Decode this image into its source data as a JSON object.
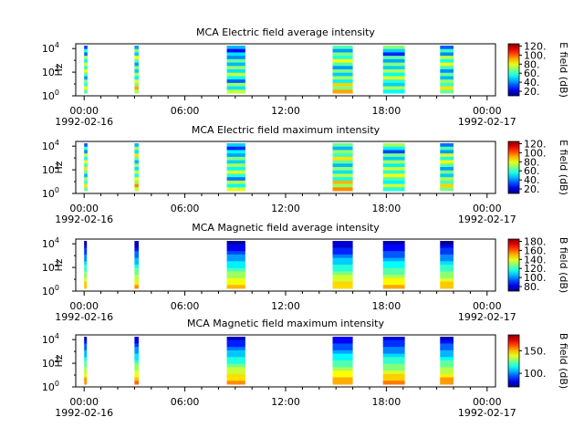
{
  "chart_data": [
    {
      "type": "heatmap",
      "title": "MCA  Electric field average intensity",
      "ylabel": "Hz",
      "y_scale": "log",
      "y_ticks": [
        "10^0",
        "10^2",
        "10^4"
      ],
      "colorbar_label": "E field (dB)",
      "colorbar_ticks": [
        "20.",
        "40.",
        "60.",
        "80.",
        "100.",
        "120."
      ],
      "colorbar_range": [
        10,
        125
      ],
      "x_ticks": [
        "00:00",
        "06:00",
        "12:00",
        "18:00",
        "00:00"
      ],
      "x_dates": [
        "1992-02-16",
        "1992-02-17"
      ],
      "x_range_hours": [
        -0.5,
        24.5
      ],
      "segments": [
        {
          "start": 0.0,
          "end": 0.2,
          "level": 62
        },
        {
          "start": 3.0,
          "end": 3.25,
          "level": 62
        },
        {
          "start": 8.5,
          "end": 9.6,
          "level": 55
        },
        {
          "start": 14.8,
          "end": 16.0,
          "level": 62
        },
        {
          "start": 17.8,
          "end": 19.1,
          "level": 58
        },
        {
          "start": 21.2,
          "end": 22.0,
          "level": 60
        }
      ]
    },
    {
      "type": "heatmap",
      "title": "MCA  Electric field maximum intensity",
      "ylabel": "Hz",
      "y_scale": "log",
      "y_ticks": [
        "10^0",
        "10^2",
        "10^4"
      ],
      "colorbar_label": "E field (dB)",
      "colorbar_ticks": [
        "20.",
        "40.",
        "60.",
        "80.",
        "100.",
        "120."
      ],
      "colorbar_range": [
        10,
        125
      ],
      "x_ticks": [
        "00:00",
        "06:00",
        "12:00",
        "18:00",
        "00:00"
      ],
      "x_dates": [
        "1992-02-16",
        "1992-02-17"
      ],
      "x_range_hours": [
        -0.5,
        24.5
      ],
      "segments": [
        {
          "start": 0.0,
          "end": 0.2,
          "level": 65
        },
        {
          "start": 3.0,
          "end": 3.25,
          "level": 65
        },
        {
          "start": 8.5,
          "end": 9.6,
          "level": 58
        },
        {
          "start": 14.8,
          "end": 16.0,
          "level": 65
        },
        {
          "start": 17.8,
          "end": 19.1,
          "level": 62
        },
        {
          "start": 21.2,
          "end": 22.0,
          "level": 62
        }
      ]
    },
    {
      "type": "heatmap",
      "title": "MCA  Magnetic field average intensity",
      "ylabel": "Hz",
      "y_scale": "log",
      "y_ticks": [
        "10^0",
        "10^2",
        "10^4"
      ],
      "colorbar_label": "B field (dB)",
      "colorbar_ticks": [
        "80.",
        "100.",
        "120.",
        "140.",
        "160.",
        "180."
      ],
      "colorbar_range": [
        70,
        185
      ],
      "x_ticks": [
        "00:00",
        "06:00",
        "12:00",
        "18:00",
        "00:00"
      ],
      "x_dates": [
        "1992-02-16",
        "1992-02-17"
      ],
      "x_range_hours": [
        -0.5,
        24.5
      ],
      "segments": [
        {
          "start": 0.0,
          "end": 0.15,
          "level": 110
        },
        {
          "start": 3.0,
          "end": 3.25,
          "level": 110
        },
        {
          "start": 8.5,
          "end": 9.6,
          "level": 110
        },
        {
          "start": 14.8,
          "end": 16.0,
          "level": 110
        },
        {
          "start": 17.8,
          "end": 19.1,
          "level": 110
        },
        {
          "start": 21.2,
          "end": 22.0,
          "level": 110
        }
      ]
    },
    {
      "type": "heatmap",
      "title": "MCA  Magnetic field maximum intensity",
      "ylabel": "Hz",
      "y_scale": "log",
      "y_ticks": [
        "10^0",
        "10^2",
        "10^4"
      ],
      "colorbar_label": "B field (dB)",
      "colorbar_ticks": [
        "100.",
        "150."
      ],
      "colorbar_range": [
        70,
        185
      ],
      "x_ticks": [
        "00:00",
        "06:00",
        "12:00",
        "18:00",
        "00:00"
      ],
      "x_dates": [
        "1992-02-16",
        "1992-02-17"
      ],
      "x_range_hours": [
        -0.5,
        24.5
      ],
      "segments": [
        {
          "start": 0.0,
          "end": 0.15,
          "level": 115
        },
        {
          "start": 3.0,
          "end": 3.25,
          "level": 115
        },
        {
          "start": 8.5,
          "end": 9.6,
          "level": 115
        },
        {
          "start": 14.8,
          "end": 16.0,
          "level": 115
        },
        {
          "start": 17.8,
          "end": 19.1,
          "level": 115
        },
        {
          "start": 21.2,
          "end": 22.0,
          "level": 115
        }
      ]
    }
  ]
}
